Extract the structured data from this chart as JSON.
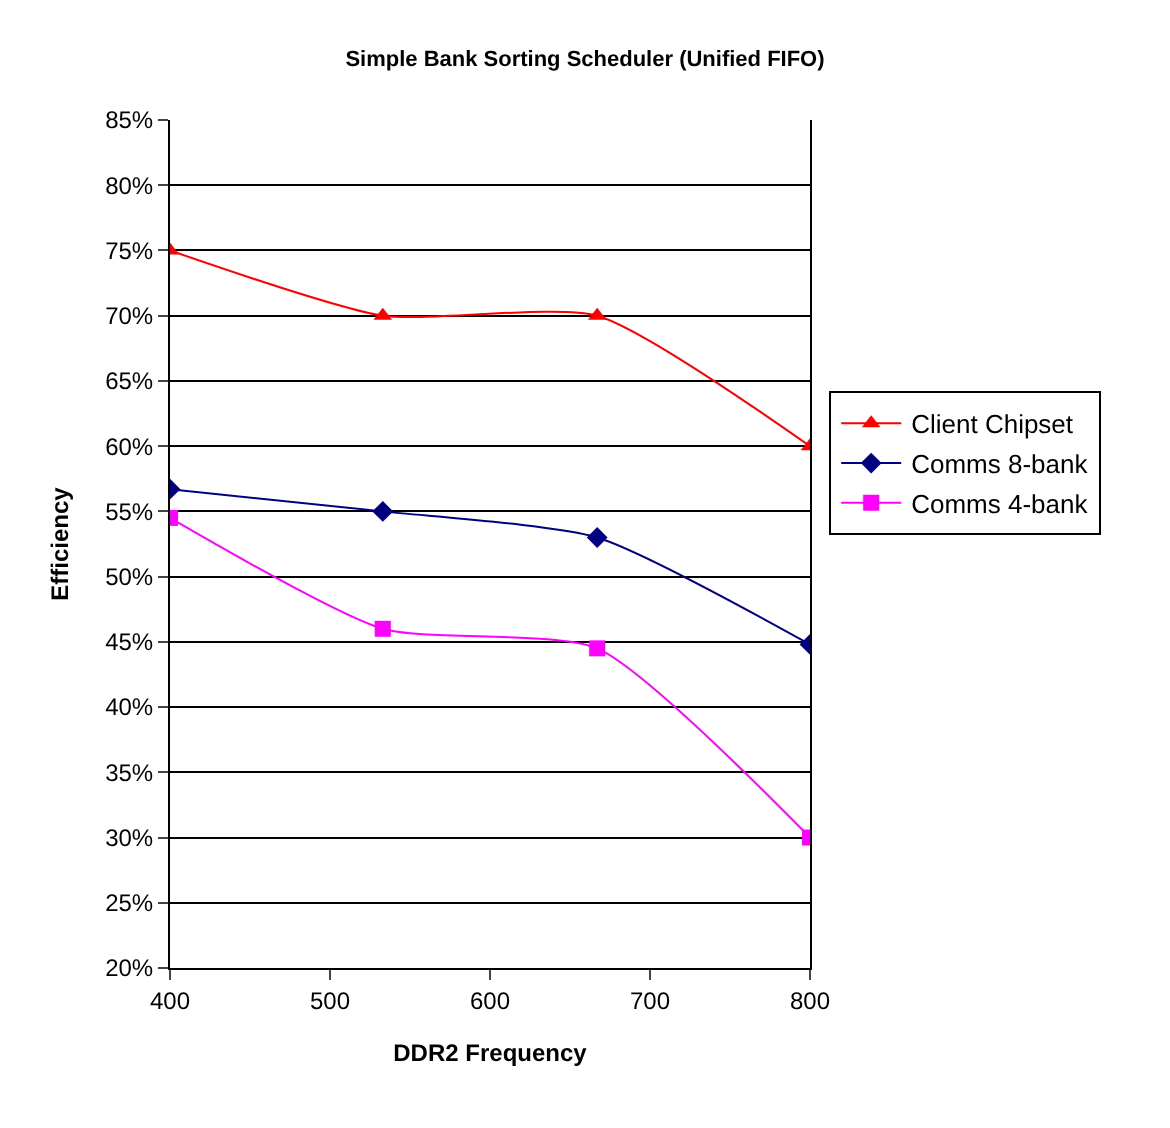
{
  "chart_data": {
    "type": "line",
    "title": "Simple Bank Sorting Scheduler (Unified FIFO)",
    "xlabel": "DDR2 Frequency",
    "ylabel": "Efficiency",
    "x": [
      400,
      533,
      667,
      800
    ],
    "series": [
      {
        "name": "Client Chipset",
        "color": "#ff0000",
        "marker": "triangle",
        "values": [
          75,
          70,
          70,
          60
        ]
      },
      {
        "name": "Comms 8-bank",
        "color": "#000080",
        "marker": "diamond",
        "values": [
          56.7,
          55,
          53,
          44.8
        ]
      },
      {
        "name": "Comms 4-bank",
        "color": "#ff00ff",
        "marker": "square",
        "values": [
          54.5,
          46,
          44.5,
          30
        ]
      }
    ],
    "xlim": [
      400,
      800
    ],
    "xticks": [
      400,
      500,
      600,
      700,
      800
    ],
    "ylim": [
      20,
      85
    ],
    "yticks": [
      {
        "value": 20,
        "label": "20%"
      },
      {
        "value": 25,
        "label": "25%"
      },
      {
        "value": 30,
        "label": "30%"
      },
      {
        "value": 35,
        "label": "35%"
      },
      {
        "value": 40,
        "label": "40%"
      },
      {
        "value": 45,
        "label": "45%"
      },
      {
        "value": 50,
        "label": "50%"
      },
      {
        "value": 55,
        "label": "55%"
      },
      {
        "value": 60,
        "label": "60%"
      },
      {
        "value": 65,
        "label": "65%"
      },
      {
        "value": 70,
        "label": "70%"
      },
      {
        "value": 75,
        "label": "75%"
      },
      {
        "value": 80,
        "label": "80%"
      },
      {
        "value": 85,
        "label": "85%"
      }
    ],
    "grid": "y",
    "legend": "right",
    "line_style": "solid"
  }
}
